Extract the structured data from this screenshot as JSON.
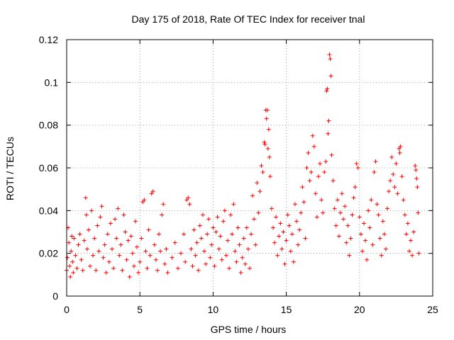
{
  "chart_data": {
    "type": "scatter",
    "title": "Day 175 of 2018, Rate Of TEC Index for receiver tnal",
    "xlabel": "GPS time / hours",
    "ylabel": "ROTI / TECUs",
    "xlim": [
      0,
      25
    ],
    "ylim": [
      0,
      0.12
    ],
    "x_ticks": [
      0,
      5,
      10,
      15,
      20,
      25
    ],
    "x_tick_labels": [
      "0",
      "5",
      "10",
      "15",
      "20",
      "25"
    ],
    "y_ticks": [
      0,
      0.02,
      0.04,
      0.06,
      0.08,
      0.1,
      0.12
    ],
    "y_tick_labels": [
      "0",
      "0.02",
      "0.04",
      "0.06",
      "0.08",
      "0.1",
      "0.12"
    ],
    "grid": true,
    "marker": "+",
    "series": [
      {
        "name": "ROTI",
        "color": "#ff0000",
        "points": [
          [
            0.0,
            0.012
          ],
          [
            0.05,
            0.018
          ],
          [
            0.1,
            0.032
          ],
          [
            0.15,
            0.025
          ],
          [
            0.2,
            0.014
          ],
          [
            0.25,
            0.009
          ],
          [
            0.3,
            0.021
          ],
          [
            0.35,
            0.028
          ],
          [
            0.4,
            0.016
          ],
          [
            0.45,
            0.011
          ],
          [
            0.5,
            0.027
          ],
          [
            0.6,
            0.019
          ],
          [
            0.7,
            0.013
          ],
          [
            0.8,
            0.024
          ],
          [
            0.9,
            0.029
          ],
          [
            1.0,
            0.017
          ],
          [
            1.1,
            0.012
          ],
          [
            1.2,
            0.026
          ],
          [
            1.3,
            0.046
          ],
          [
            1.35,
            0.038
          ],
          [
            1.4,
            0.022
          ],
          [
            1.5,
            0.031
          ],
          [
            1.6,
            0.014
          ],
          [
            1.7,
            0.04
          ],
          [
            1.8,
            0.019
          ],
          [
            1.9,
            0.027
          ],
          [
            2.0,
            0.012
          ],
          [
            2.1,
            0.033
          ],
          [
            2.2,
            0.021
          ],
          [
            2.3,
            0.037
          ],
          [
            2.4,
            0.042
          ],
          [
            2.5,
            0.018
          ],
          [
            2.6,
            0.024
          ],
          [
            2.7,
            0.011
          ],
          [
            2.8,
            0.029
          ],
          [
            2.9,
            0.016
          ],
          [
            3.0,
            0.034
          ],
          [
            3.1,
            0.022
          ],
          [
            3.2,
            0.013
          ],
          [
            3.3,
            0.036
          ],
          [
            3.4,
            0.027
          ],
          [
            3.5,
            0.041
          ],
          [
            3.6,
            0.019
          ],
          [
            3.7,
            0.024
          ],
          [
            3.8,
            0.012
          ],
          [
            3.9,
            0.038
          ],
          [
            4.0,
            0.03
          ],
          [
            4.1,
            0.017
          ],
          [
            4.2,
            0.026
          ],
          [
            4.3,
            0.009
          ],
          [
            4.4,
            0.028
          ],
          [
            4.5,
            0.02
          ],
          [
            4.6,
            0.014
          ],
          [
            4.7,
            0.035
          ],
          [
            4.8,
            0.023
          ],
          [
            4.9,
            0.011
          ],
          [
            5.0,
            0.016
          ],
          [
            5.1,
            0.027
          ],
          [
            5.2,
            0.044
          ],
          [
            5.3,
            0.045
          ],
          [
            5.4,
            0.021
          ],
          [
            5.5,
            0.013
          ],
          [
            5.6,
            0.031
          ],
          [
            5.7,
            0.019
          ],
          [
            5.8,
            0.048
          ],
          [
            5.9,
            0.049
          ],
          [
            6.0,
            0.024
          ],
          [
            6.1,
            0.017
          ],
          [
            6.2,
            0.012
          ],
          [
            6.3,
            0.029
          ],
          [
            6.4,
            0.021
          ],
          [
            6.5,
            0.038
          ],
          [
            6.6,
            0.043
          ],
          [
            6.7,
            0.015
          ],
          [
            6.8,
            0.022
          ],
          [
            6.9,
            0.011
          ],
          [
            7.2,
            0.018
          ],
          [
            7.4,
            0.025
          ],
          [
            7.6,
            0.013
          ],
          [
            7.8,
            0.02
          ],
          [
            8.0,
            0.029
          ],
          [
            8.1,
            0.016
          ],
          [
            8.2,
            0.045
          ],
          [
            8.3,
            0.046
          ],
          [
            8.4,
            0.043
          ],
          [
            8.5,
            0.022
          ],
          [
            8.6,
            0.014
          ],
          [
            8.7,
            0.031
          ],
          [
            8.8,
            0.019
          ],
          [
            8.9,
            0.025
          ],
          [
            9.0,
            0.012
          ],
          [
            9.1,
            0.033
          ],
          [
            9.2,
            0.027
          ],
          [
            9.3,
            0.038
          ],
          [
            9.4,
            0.021
          ],
          [
            9.5,
            0.015
          ],
          [
            9.6,
            0.029
          ],
          [
            9.7,
            0.036
          ],
          [
            9.8,
            0.018
          ],
          [
            9.9,
            0.024
          ],
          [
            10.0,
            0.032
          ],
          [
            10.1,
            0.014
          ],
          [
            10.2,
            0.03
          ],
          [
            10.3,
            0.037
          ],
          [
            10.4,
            0.022
          ],
          [
            10.5,
            0.028
          ],
          [
            10.6,
            0.017
          ],
          [
            10.7,
            0.035
          ],
          [
            10.8,
            0.04
          ],
          [
            10.9,
            0.019
          ],
          [
            11.0,
            0.026
          ],
          [
            11.1,
            0.013
          ],
          [
            11.2,
            0.038
          ],
          [
            11.3,
            0.029
          ],
          [
            11.4,
            0.043
          ],
          [
            11.5,
            0.021
          ],
          [
            11.6,
            0.016
          ],
          [
            11.7,
            0.032
          ],
          [
            11.8,
            0.024
          ],
          [
            11.9,
            0.011
          ],
          [
            12.0,
            0.018
          ],
          [
            12.1,
            0.027
          ],
          [
            12.2,
            0.015
          ],
          [
            12.3,
            0.032
          ],
          [
            12.4,
            0.022
          ],
          [
            12.5,
            0.013
          ],
          [
            12.6,
            0.029
          ],
          [
            12.7,
            0.047
          ],
          [
            12.8,
            0.036
          ],
          [
            12.9,
            0.024
          ],
          [
            13.0,
            0.053
          ],
          [
            13.1,
            0.039
          ],
          [
            13.2,
            0.049
          ],
          [
            13.3,
            0.061
          ],
          [
            13.4,
            0.058
          ],
          [
            13.5,
            0.072
          ],
          [
            13.55,
            0.071
          ],
          [
            13.6,
            0.087
          ],
          [
            13.65,
            0.083
          ],
          [
            13.7,
            0.087
          ],
          [
            13.75,
            0.069
          ],
          [
            13.8,
            0.078
          ],
          [
            13.85,
            0.065
          ],
          [
            13.9,
            0.056
          ],
          [
            14.0,
            0.041
          ],
          [
            14.1,
            0.032
          ],
          [
            14.2,
            0.025
          ],
          [
            14.3,
            0.037
          ],
          [
            14.4,
            0.019
          ],
          [
            14.5,
            0.028
          ],
          [
            14.6,
            0.034
          ],
          [
            14.7,
            0.022
          ],
          [
            14.8,
            0.03
          ],
          [
            14.9,
            0.015
          ],
          [
            15.0,
            0.026
          ],
          [
            15.1,
            0.038
          ],
          [
            15.2,
            0.033
          ],
          [
            15.3,
            0.021
          ],
          [
            15.4,
            0.029
          ],
          [
            15.5,
            0.016
          ],
          [
            15.6,
            0.043
          ],
          [
            15.7,
            0.035
          ],
          [
            15.8,
            0.024
          ],
          [
            15.9,
            0.031
          ],
          [
            16.0,
            0.039
          ],
          [
            16.1,
            0.051
          ],
          [
            16.2,
            0.044
          ],
          [
            16.3,
            0.027
          ],
          [
            16.4,
            0.06
          ],
          [
            16.5,
            0.067
          ],
          [
            16.6,
            0.054
          ],
          [
            16.7,
            0.058
          ],
          [
            16.8,
            0.075
          ],
          [
            16.9,
            0.07
          ],
          [
            17.0,
            0.048
          ],
          [
            17.1,
            0.037
          ],
          [
            17.2,
            0.056
          ],
          [
            17.3,
            0.062
          ],
          [
            17.4,
            0.045
          ],
          [
            17.5,
            0.039
          ],
          [
            17.6,
            0.058
          ],
          [
            17.7,
            0.063
          ],
          [
            17.75,
            0.096
          ],
          [
            17.8,
            0.097
          ],
          [
            17.85,
            0.076
          ],
          [
            17.9,
            0.082
          ],
          [
            17.95,
            0.113
          ],
          [
            18.0,
            0.111
          ],
          [
            18.05,
            0.103
          ],
          [
            18.1,
            0.066
          ],
          [
            18.2,
            0.054
          ],
          [
            18.3,
            0.041
          ],
          [
            18.4,
            0.033
          ],
          [
            18.5,
            0.045
          ],
          [
            18.6,
            0.028
          ],
          [
            18.7,
            0.039
          ],
          [
            18.8,
            0.048
          ],
          [
            18.9,
            0.036
          ],
          [
            19.0,
            0.042
          ],
          [
            19.1,
            0.025
          ],
          [
            19.2,
            0.033
          ],
          [
            19.3,
            0.019
          ],
          [
            19.4,
            0.027
          ],
          [
            19.5,
            0.038
          ],
          [
            19.6,
            0.046
          ],
          [
            19.7,
            0.051
          ],
          [
            19.8,
            0.062
          ],
          [
            19.9,
            0.06
          ],
          [
            20.0,
            0.037
          ],
          [
            20.1,
            0.029
          ],
          [
            20.2,
            0.021
          ],
          [
            20.3,
            0.034
          ],
          [
            20.4,
            0.026
          ],
          [
            20.5,
            0.017
          ],
          [
            20.6,
            0.04
          ],
          [
            20.7,
            0.032
          ],
          [
            20.8,
            0.045
          ],
          [
            20.9,
            0.024
          ],
          [
            21.0,
            0.058
          ],
          [
            21.1,
            0.063
          ],
          [
            21.2,
            0.043
          ],
          [
            21.3,
            0.038
          ],
          [
            21.4,
            0.027
          ],
          [
            21.5,
            0.019
          ],
          [
            21.6,
            0.035
          ],
          [
            21.7,
            0.029
          ],
          [
            21.8,
            0.022
          ],
          [
            21.9,
            0.041
          ],
          [
            22.0,
            0.049
          ],
          [
            22.1,
            0.054
          ],
          [
            22.2,
            0.065
          ],
          [
            22.3,
            0.057
          ],
          [
            22.4,
            0.051
          ],
          [
            22.5,
            0.062
          ],
          [
            22.6,
            0.048
          ],
          [
            22.7,
            0.069
          ],
          [
            22.75,
            0.067
          ],
          [
            22.8,
            0.07
          ],
          [
            22.9,
            0.056
          ],
          [
            23.0,
            0.045
          ],
          [
            23.1,
            0.038
          ],
          [
            23.2,
            0.029
          ],
          [
            23.3,
            0.034
          ],
          [
            23.4,
            0.021
          ],
          [
            23.5,
            0.026
          ],
          [
            23.6,
            0.019
          ],
          [
            23.7,
            0.03
          ],
          [
            23.8,
            0.061
          ],
          [
            23.85,
            0.059
          ],
          [
            23.9,
            0.055
          ],
          [
            23.95,
            0.051
          ],
          [
            24.0,
            0.039
          ],
          [
            24.05,
            0.02
          ]
        ]
      }
    ]
  }
}
